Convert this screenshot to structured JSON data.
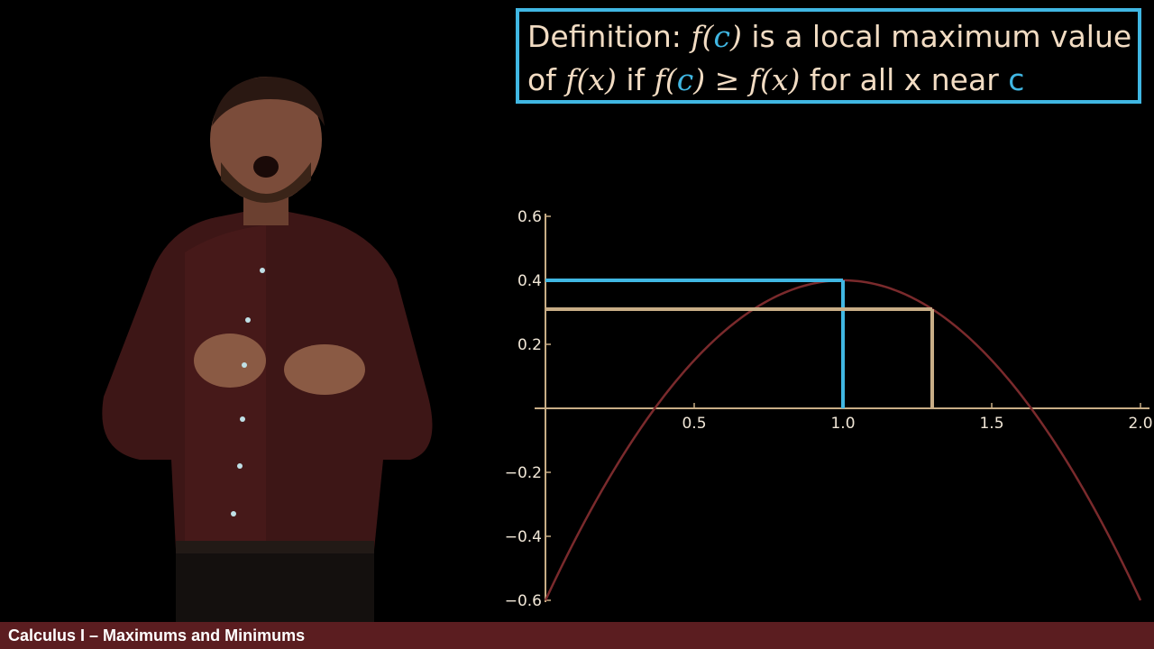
{
  "definition": {
    "line1": {
      "t1": "Definition: ",
      "m1": "f(",
      "m2": "c",
      "m3": ")",
      "t2": " is a local maximum value"
    },
    "line2": {
      "t1": "of ",
      "m1": "f(x)",
      "t2": " if ",
      "m2": "f(",
      "m3": "c",
      "m4": ")",
      "m5": " ≥ ",
      "m6": "f(x)",
      "t3": " for all x near ",
      "t4": "c"
    }
  },
  "footer": {
    "title": "Calculus I – Maximums and Minimums"
  },
  "colors": {
    "accent": "#40b7e3",
    "curve": "#7a2a2c",
    "tan_lines": "#c8ad86",
    "footer_bg": "#5b1d20"
  },
  "chart_data": {
    "type": "line",
    "function_form": "-(x - 1)^2 + 0.4",
    "x": [
      0.0,
      0.1,
      0.2,
      0.3,
      0.4,
      0.5,
      0.6,
      0.7,
      0.8,
      0.9,
      1.0,
      1.1,
      1.2,
      1.3,
      1.4,
      1.5,
      1.6,
      1.7,
      1.8,
      1.9,
      2.0
    ],
    "y": [
      -0.6,
      -0.41,
      -0.24,
      -0.09,
      0.04,
      0.15,
      0.24,
      0.31,
      0.36,
      0.39,
      0.4,
      0.39,
      0.36,
      0.31,
      0.24,
      0.15,
      0.04,
      -0.09,
      -0.24,
      -0.41,
      -0.6
    ],
    "xlim": [
      0,
      2.0
    ],
    "ylim": [
      -0.6,
      0.6
    ],
    "x_ticks": [
      0.5,
      1.0,
      1.5,
      2.0
    ],
    "x_tick_labels": [
      "0.5",
      "1.0",
      "1.5",
      "2.0"
    ],
    "y_ticks": [
      0.6,
      0.4,
      0.2,
      -0.2,
      -0.4,
      -0.6
    ],
    "y_tick_labels": [
      "0.6",
      "0.4",
      "0.2",
      "−0.2",
      "−0.4",
      "−0.6"
    ],
    "guides": [
      {
        "name": "max-guide",
        "x": 1.0,
        "y": 0.4,
        "color": "#40b7e3"
      },
      {
        "name": "compare-guide",
        "x": 1.3,
        "y": 0.31,
        "color": "#c8ad86"
      }
    ],
    "grid": false
  }
}
